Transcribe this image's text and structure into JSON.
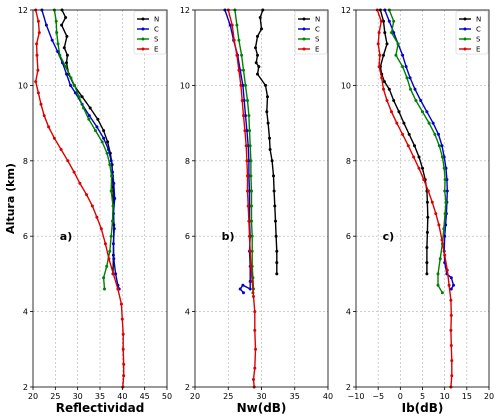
{
  "chart_data": [
    {
      "type": "line",
      "panel_label": "a)",
      "xlabel": "Reflectividad",
      "ylabel": "Altura (km)",
      "xlim": [
        20,
        50
      ],
      "ylim": [
        2,
        12
      ],
      "xticks": [
        "20",
        "25",
        "30",
        "35",
        "40",
        "45",
        "50"
      ],
      "yticks": [
        "2",
        "4",
        "6",
        "8",
        "10",
        "12"
      ],
      "grid": true,
      "legend_position": "top-right",
      "series": [
        {
          "name": "N",
          "color": "#000000",
          "x": [
            26.5,
            27.3,
            26.4,
            27.6,
            27.0,
            27.7,
            27.5,
            28.0,
            29.2,
            31.0,
            32.8,
            34.5,
            35.8,
            36.7,
            37.3,
            37.7,
            37.8,
            37.9,
            38.0,
            38.1,
            38.0,
            37.9
          ],
          "y": [
            12,
            11.8,
            11.6,
            11.3,
            11.0,
            10.8,
            10.6,
            10.3,
            10.0,
            9.7,
            9.4,
            9.1,
            8.8,
            8.5,
            8.2,
            7.9,
            7.6,
            7.3,
            6.8,
            6.3,
            5.5,
            5.0
          ]
        },
        {
          "name": "C",
          "color": "#0000cc",
          "x": [
            22.0,
            23.0,
            24.3,
            25.5,
            26.6,
            27.5,
            28.4,
            29.5,
            31.0,
            32.6,
            34.3,
            35.8,
            36.9,
            37.5,
            37.8,
            38.1,
            38.3,
            38.0,
            38.2,
            38.0,
            38.1,
            38.5,
            39.0,
            39.3
          ],
          "y": [
            12,
            11.6,
            11.2,
            10.9,
            10.6,
            10.3,
            10.0,
            9.8,
            9.5,
            9.2,
            8.9,
            8.6,
            8.3,
            8.0,
            7.7,
            7.4,
            7.0,
            6.6,
            6.2,
            5.8,
            5.4,
            5.0,
            4.7,
            4.6
          ]
        },
        {
          "name": "S",
          "color": "#008000",
          "x": [
            24.8,
            25.2,
            25.3,
            25.6,
            26.0,
            27.3,
            28.5,
            29.3,
            30.3,
            31.3,
            32.5,
            34.0,
            35.5,
            36.6,
            37.2,
            37.6,
            37.5,
            37.9,
            37.8,
            37.5,
            37.2,
            36.5,
            35.8,
            36.0
          ],
          "y": [
            12,
            11.7,
            11.4,
            11.1,
            10.8,
            10.5,
            10.2,
            10.0,
            9.7,
            9.4,
            9.1,
            8.8,
            8.5,
            8.2,
            7.9,
            7.6,
            7.2,
            6.8,
            6.4,
            6.0,
            5.6,
            5.2,
            4.9,
            4.6
          ]
        },
        {
          "name": "E",
          "color": "#dd0000",
          "x": [
            20.6,
            21.2,
            21.4,
            20.8,
            20.9,
            21.1,
            20.6,
            21.2,
            21.8,
            22.5,
            23.5,
            24.8,
            26.3,
            27.8,
            29.2,
            30.5,
            32.0,
            33.3,
            34.3,
            35.3,
            36.2,
            37.0,
            38.0,
            39.0,
            39.8,
            40.0,
            40.2,
            40.2,
            40.3,
            40.3,
            40.1
          ],
          "y": [
            12,
            11.7,
            11.4,
            11.1,
            10.8,
            10.4,
            10.1,
            9.8,
            9.5,
            9.2,
            8.9,
            8.6,
            8.3,
            8.0,
            7.7,
            7.4,
            7.1,
            6.8,
            6.5,
            6.2,
            5.8,
            5.4,
            5.0,
            4.6,
            4.2,
            3.8,
            3.4,
            3.0,
            2.6,
            2.3,
            2.0
          ]
        }
      ]
    },
    {
      "type": "line",
      "panel_label": "b)",
      "xlabel": "Nw(dB)",
      "ylabel": "",
      "xlim": [
        20,
        40
      ],
      "ylim": [
        2,
        12
      ],
      "xticks": [
        "20",
        "25",
        "30",
        "35",
        "40"
      ],
      "yticks": [
        "2",
        "4",
        "6",
        "8",
        "10",
        "12"
      ],
      "grid": true,
      "legend_position": "top-right",
      "series": [
        {
          "name": "N",
          "color": "#000000",
          "x": [
            30.2,
            29.8,
            30.0,
            29.4,
            29.1,
            29.4,
            29.2,
            29.6,
            29.4,
            30.6,
            30.9,
            30.8,
            31.0,
            31.2,
            31.3,
            31.6,
            31.8,
            31.9,
            32.0,
            32.1,
            32.2,
            32.3,
            32.3,
            32.3
          ],
          "y": [
            12,
            11.8,
            11.5,
            11.3,
            11.0,
            10.8,
            10.6,
            10.5,
            10.3,
            10.0,
            9.7,
            9.3,
            9.0,
            8.6,
            8.3,
            8.0,
            7.6,
            7.2,
            6.8,
            6.4,
            6.0,
            5.6,
            5.3,
            5.0
          ]
        },
        {
          "name": "C",
          "color": "#0000cc",
          "x": [
            24.5,
            25.3,
            25.8,
            26.4,
            26.8,
            27.2,
            27.4,
            27.6,
            27.8,
            28.0,
            28.1,
            28.1,
            28.2,
            28.2,
            28.2,
            28.3,
            28.2,
            28.3,
            28.3,
            28.3,
            27.2,
            26.8,
            27.3
          ],
          "y": [
            12,
            11.6,
            11.2,
            10.8,
            10.4,
            10.0,
            9.6,
            9.2,
            8.8,
            8.4,
            8.0,
            7.6,
            7.2,
            6.8,
            6.4,
            6.0,
            5.6,
            5.2,
            4.8,
            4.6,
            4.7,
            4.6,
            4.5
          ]
        },
        {
          "name": "S",
          "color": "#008000",
          "x": [
            26.0,
            26.3,
            26.6,
            27.0,
            27.3,
            27.6,
            27.9,
            28.1,
            28.2,
            28.3,
            28.4,
            28.4,
            28.5,
            28.5,
            28.5,
            28.6,
            28.6,
            28.6,
            28.7,
            28.8,
            28.7
          ],
          "y": [
            12,
            11.6,
            11.2,
            10.8,
            10.4,
            10.0,
            9.6,
            9.2,
            8.8,
            8.4,
            8.0,
            7.6,
            7.2,
            6.8,
            6.4,
            6.0,
            5.6,
            5.2,
            4.9,
            4.6,
            4.5
          ]
        },
        {
          "name": "E",
          "color": "#dd0000",
          "x": [
            25.0,
            25.6,
            25.9,
            26.3,
            26.6,
            26.9,
            27.1,
            27.3,
            27.5,
            27.7,
            27.8,
            27.9,
            27.9,
            28.0,
            28.1,
            28.2,
            28.3,
            28.4,
            28.6,
            28.8,
            29.0,
            29.0,
            29.1,
            29.0,
            28.8,
            28.9
          ],
          "y": [
            12,
            11.6,
            11.2,
            10.8,
            10.4,
            10.0,
            9.6,
            9.2,
            8.8,
            8.4,
            8.0,
            7.6,
            7.2,
            6.8,
            6.4,
            6.0,
            5.6,
            5.2,
            4.8,
            4.4,
            4.0,
            3.5,
            3.0,
            2.5,
            2.2,
            2.0
          ]
        }
      ]
    },
    {
      "type": "line",
      "panel_label": "c)",
      "xlabel": "Ib(dB)",
      "ylabel": "",
      "xlim": [
        -10,
        20
      ],
      "ylim": [
        2,
        12
      ],
      "xticks": [
        "−10",
        "−5",
        "0",
        "5",
        "10",
        "15",
        "20"
      ],
      "yticks": [
        "2",
        "4",
        "6",
        "8",
        "10",
        "12"
      ],
      "grid": true,
      "legend_position": "top-right",
      "series": [
        {
          "name": "N",
          "color": "#000000",
          "x": [
            -4.5,
            -3.8,
            -3.5,
            -3.0,
            -3.8,
            -4.5,
            -4.2,
            -3.6,
            -2.5,
            -1.5,
            -0.3,
            0.8,
            2.0,
            3.2,
            4.2,
            5.0,
            5.6,
            6.0,
            6.1,
            6.2,
            6.1,
            6.0,
            6.0,
            6.0
          ],
          "y": [
            12,
            11.7,
            11.4,
            11.1,
            10.8,
            10.5,
            10.3,
            10.1,
            9.9,
            9.6,
            9.3,
            9.0,
            8.7,
            8.4,
            8.1,
            7.8,
            7.5,
            7.2,
            6.9,
            6.5,
            6.1,
            5.7,
            5.3,
            5.0
          ]
        },
        {
          "name": "C",
          "color": "#0000cc",
          "x": [
            -3.5,
            -2.5,
            -1.5,
            -0.5,
            0.5,
            1.3,
            2.2,
            3.3,
            4.6,
            6.0,
            7.4,
            8.6,
            9.4,
            9.9,
            10.3,
            10.5,
            10.6,
            10.5,
            10.4,
            10.2,
            10.0,
            9.9,
            10.0,
            10.5,
            11.5,
            12.0,
            11.5
          ],
          "y": [
            12,
            11.7,
            11.4,
            11.1,
            10.8,
            10.5,
            10.2,
            9.9,
            9.6,
            9.3,
            9.0,
            8.7,
            8.4,
            8.1,
            7.8,
            7.5,
            7.2,
            6.9,
            6.6,
            6.3,
            6.0,
            5.6,
            5.3,
            5.0,
            4.9,
            4.7,
            4.6
          ]
        },
        {
          "name": "S",
          "color": "#008000",
          "x": [
            -2.5,
            -1.5,
            -2.0,
            -0.5,
            -1.0,
            0.5,
            1.5,
            2.3,
            3.5,
            5.0,
            6.5,
            7.8,
            8.8,
            9.5,
            9.9,
            10.1,
            10.0,
            10.3,
            10.1,
            9.8,
            9.5,
            9.0,
            8.5,
            8.5,
            9.5
          ],
          "y": [
            12,
            11.7,
            11.4,
            11.1,
            10.8,
            10.5,
            10.2,
            9.9,
            9.6,
            9.3,
            9.0,
            8.7,
            8.4,
            8.1,
            7.8,
            7.5,
            7.2,
            6.9,
            6.6,
            6.2,
            5.8,
            5.4,
            5.0,
            4.7,
            4.5
          ]
        },
        {
          "name": "E",
          "color": "#dd0000",
          "x": [
            -5.2,
            -4.3,
            -4.8,
            -5.0,
            -4.6,
            -4.8,
            -4.2,
            -3.8,
            -3.0,
            -2.0,
            -0.8,
            0.5,
            1.8,
            3.0,
            4.2,
            5.3,
            6.3,
            7.2,
            8.0,
            8.7,
            9.4,
            10.0,
            10.6,
            11.0,
            11.4,
            11.5,
            11.4,
            11.5,
            11.6,
            11.6,
            11.4
          ],
          "y": [
            12,
            11.7,
            11.4,
            11.1,
            10.8,
            10.5,
            10.2,
            9.9,
            9.6,
            9.3,
            9.0,
            8.7,
            8.4,
            8.1,
            7.8,
            7.5,
            7.2,
            6.9,
            6.6,
            6.3,
            5.9,
            5.5,
            5.1,
            4.7,
            4.3,
            3.9,
            3.5,
            3.1,
            2.7,
            2.3,
            2.0
          ]
        }
      ]
    }
  ]
}
